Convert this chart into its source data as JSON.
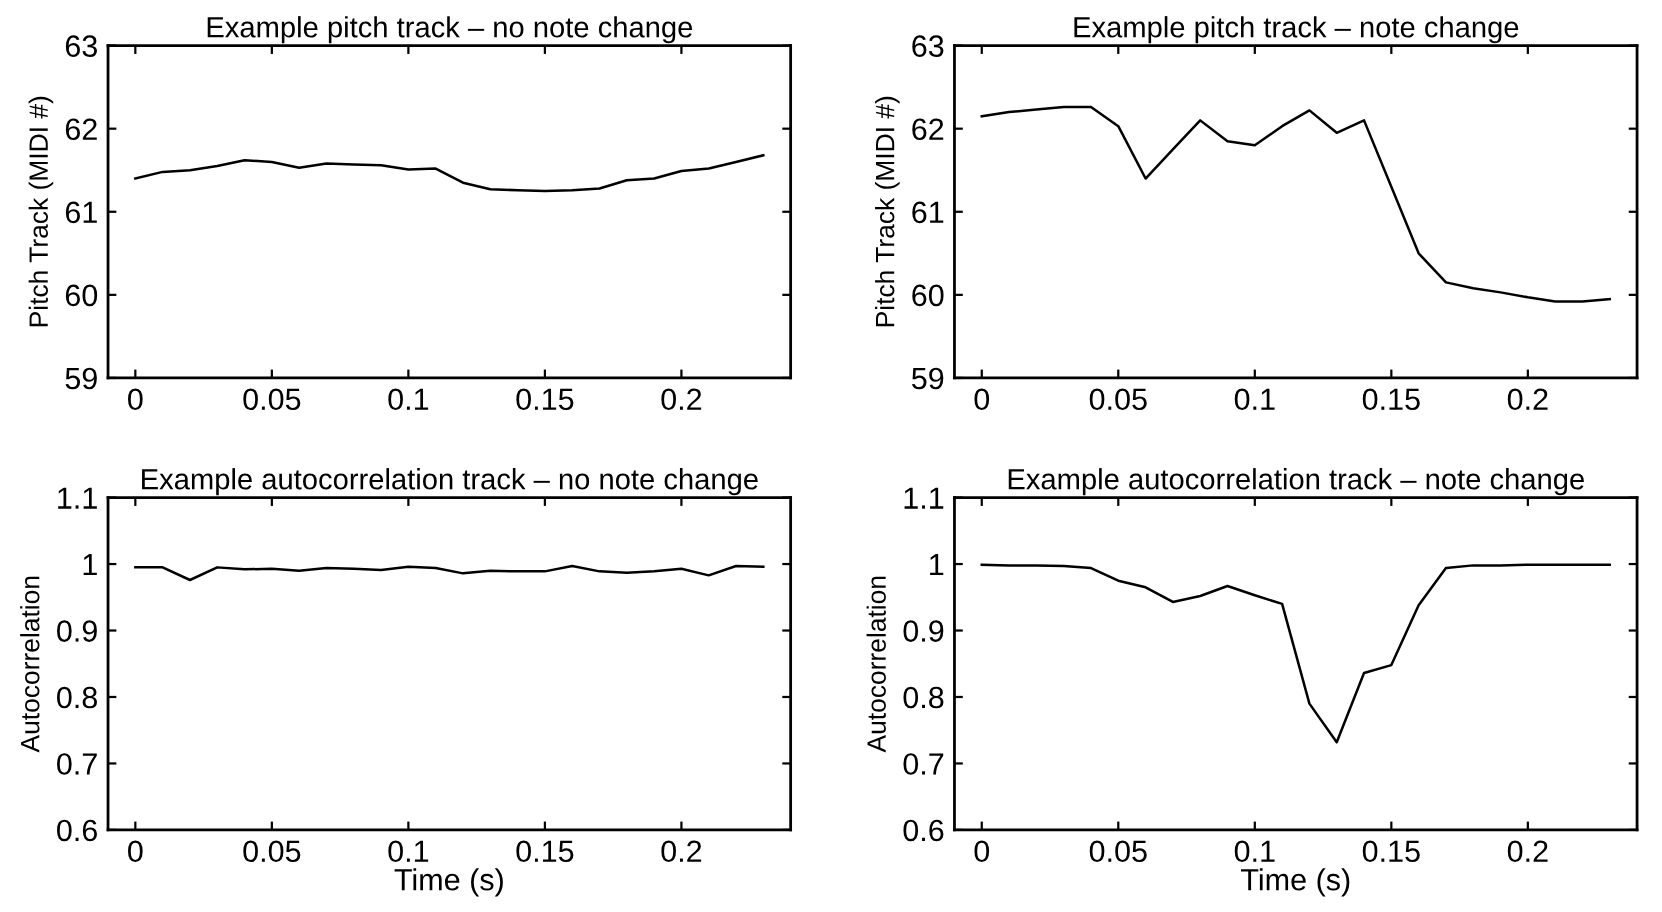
{
  "chart_data": [
    {
      "type": "line",
      "title": "Example pitch track – no note change",
      "ylabel": "Pitch Track (MIDI #)",
      "x": [
        0,
        0.01,
        0.02,
        0.03,
        0.04,
        0.05,
        0.06,
        0.07,
        0.08,
        0.09,
        0.1,
        0.11,
        0.12,
        0.13,
        0.14,
        0.15,
        0.16,
        0.17,
        0.18,
        0.19,
        0.2,
        0.21,
        0.22,
        0.23
      ],
      "series": [
        {
          "color": "#000000",
          "values": [
            61.4,
            61.48,
            61.5,
            61.55,
            61.62,
            61.6,
            61.53,
            61.58,
            61.57,
            61.56,
            61.51,
            61.52,
            61.35,
            61.27,
            61.26,
            61.25,
            61.26,
            61.28,
            61.38,
            61.4,
            61.49,
            61.52,
            61.6,
            61.68
          ]
        }
      ],
      "xlim": [
        -0.01,
        0.24
      ],
      "xticks": [
        0,
        0.05,
        0.1,
        0.15,
        0.2
      ],
      "ylim": [
        59,
        63
      ],
      "yticks": [
        59,
        60,
        61,
        62,
        63
      ],
      "grid": false,
      "legend": false
    },
    {
      "type": "line",
      "title": "Example pitch track – note change",
      "ylabel": "Pitch Track (MIDI #)",
      "x": [
        0,
        0.01,
        0.02,
        0.03,
        0.04,
        0.05,
        0.06,
        0.07,
        0.08,
        0.09,
        0.1,
        0.11,
        0.12,
        0.13,
        0.14,
        0.15,
        0.16,
        0.17,
        0.18,
        0.19,
        0.2,
        0.21,
        0.22,
        0.23
      ],
      "series": [
        {
          "color": "#000000",
          "values": [
            62.15,
            62.2,
            62.23,
            62.26,
            62.26,
            62.03,
            61.4,
            61.75,
            62.1,
            61.85,
            61.8,
            62.03,
            62.22,
            61.95,
            62.1,
            61.3,
            60.5,
            60.15,
            60.08,
            60.03,
            59.97,
            59.92,
            59.92,
            59.95
          ]
        }
      ],
      "xlim": [
        -0.01,
        0.24
      ],
      "xticks": [
        0,
        0.05,
        0.1,
        0.15,
        0.2
      ],
      "ylim": [
        59,
        63
      ],
      "yticks": [
        59,
        60,
        61,
        62,
        63
      ],
      "grid": false,
      "legend": false
    },
    {
      "type": "line",
      "title": "Example autocorrelation track – no note change",
      "xlabel": "Time (s)",
      "ylabel": "Autocorrelation",
      "x": [
        0,
        0.01,
        0.02,
        0.03,
        0.04,
        0.05,
        0.06,
        0.07,
        0.08,
        0.09,
        0.1,
        0.11,
        0.12,
        0.13,
        0.14,
        0.15,
        0.16,
        0.17,
        0.18,
        0.19,
        0.2,
        0.21,
        0.22,
        0.23
      ],
      "series": [
        {
          "color": "#000000",
          "values": [
            0.995,
            0.995,
            0.976,
            0.995,
            0.992,
            0.993,
            0.99,
            0.994,
            0.993,
            0.991,
            0.996,
            0.994,
            0.986,
            0.99,
            0.989,
            0.989,
            0.997,
            0.989,
            0.987,
            0.989,
            0.993,
            0.983,
            0.997,
            0.996
          ]
        }
      ],
      "xlim": [
        -0.01,
        0.24
      ],
      "xticks": [
        0,
        0.05,
        0.1,
        0.15,
        0.2
      ],
      "ylim": [
        0.6,
        1.1
      ],
      "yticks": [
        0.6,
        0.7,
        0.8,
        0.9,
        1,
        1.1
      ],
      "grid": false,
      "legend": false
    },
    {
      "type": "line",
      "title": "Example autocorrelation track – note change",
      "xlabel": "Time (s)",
      "ylabel": "Autocorrelation",
      "x": [
        0,
        0.01,
        0.02,
        0.03,
        0.04,
        0.05,
        0.06,
        0.07,
        0.08,
        0.09,
        0.1,
        0.11,
        0.12,
        0.13,
        0.14,
        0.15,
        0.16,
        0.17,
        0.18,
        0.19,
        0.2,
        0.21,
        0.22,
        0.23
      ],
      "series": [
        {
          "color": "#000000",
          "values": [
            0.999,
            0.998,
            0.998,
            0.997,
            0.994,
            0.975,
            0.965,
            0.943,
            0.952,
            0.967,
            0.953,
            0.94,
            0.79,
            0.732,
            0.836,
            0.848,
            0.938,
            0.994,
            0.998,
            0.998,
            0.999,
            0.999,
            0.999,
            0.999
          ]
        }
      ],
      "xlim": [
        -0.01,
        0.24
      ],
      "xticks": [
        0,
        0.05,
        0.1,
        0.15,
        0.2
      ],
      "ylim": [
        0.6,
        1.1
      ],
      "yticks": [
        0.6,
        0.7,
        0.8,
        0.9,
        1,
        1.1
      ],
      "grid": false,
      "legend": false
    }
  ]
}
